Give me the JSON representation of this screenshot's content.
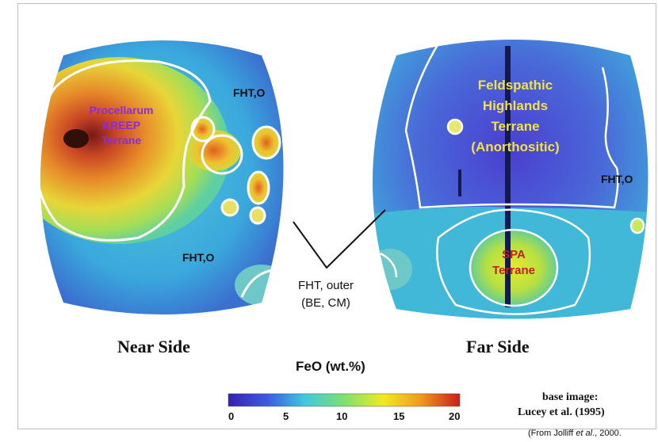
{
  "map": {
    "near_side": {
      "title": "Near Side",
      "labels": {
        "pkt": [
          "Procellarum",
          "KREEP",
          "Terrane"
        ],
        "fhto_upper": "FHT,O",
        "fhto_lower": "FHT,O"
      }
    },
    "far_side": {
      "title": "Far Side",
      "labels": {
        "fht": [
          "Feldspathic",
          "Highlands",
          "Terrane",
          "(Anorthositic)"
        ],
        "fhto": "FHT,O",
        "spa": [
          "SPA",
          "Terrane"
        ]
      }
    },
    "callout": [
      "FHT, outer",
      "(BE, CM)"
    ],
    "colorbar": {
      "title": "FeO (wt.%)",
      "ticks": [
        "0",
        "5",
        "10",
        "15",
        "20"
      ],
      "min": 0,
      "max": 20,
      "colors": [
        "#3a1fb0",
        "#3c5ce0",
        "#3fc8e0",
        "#7ee070",
        "#f0ea20",
        "#f09a20",
        "#c8201a"
      ]
    },
    "credit": {
      "base_label": "base image:",
      "base_source": "Lucey et al. (1995)",
      "from_prefix": "(From Jolliff ",
      "from_etal": "et al",
      "from_suffix": "., 2000."
    },
    "colors": {
      "pkt_label": "#8a2be2",
      "fht_label": "#f2e04a",
      "spa_label": "#c0201a",
      "boundary": "#ffffff"
    }
  }
}
